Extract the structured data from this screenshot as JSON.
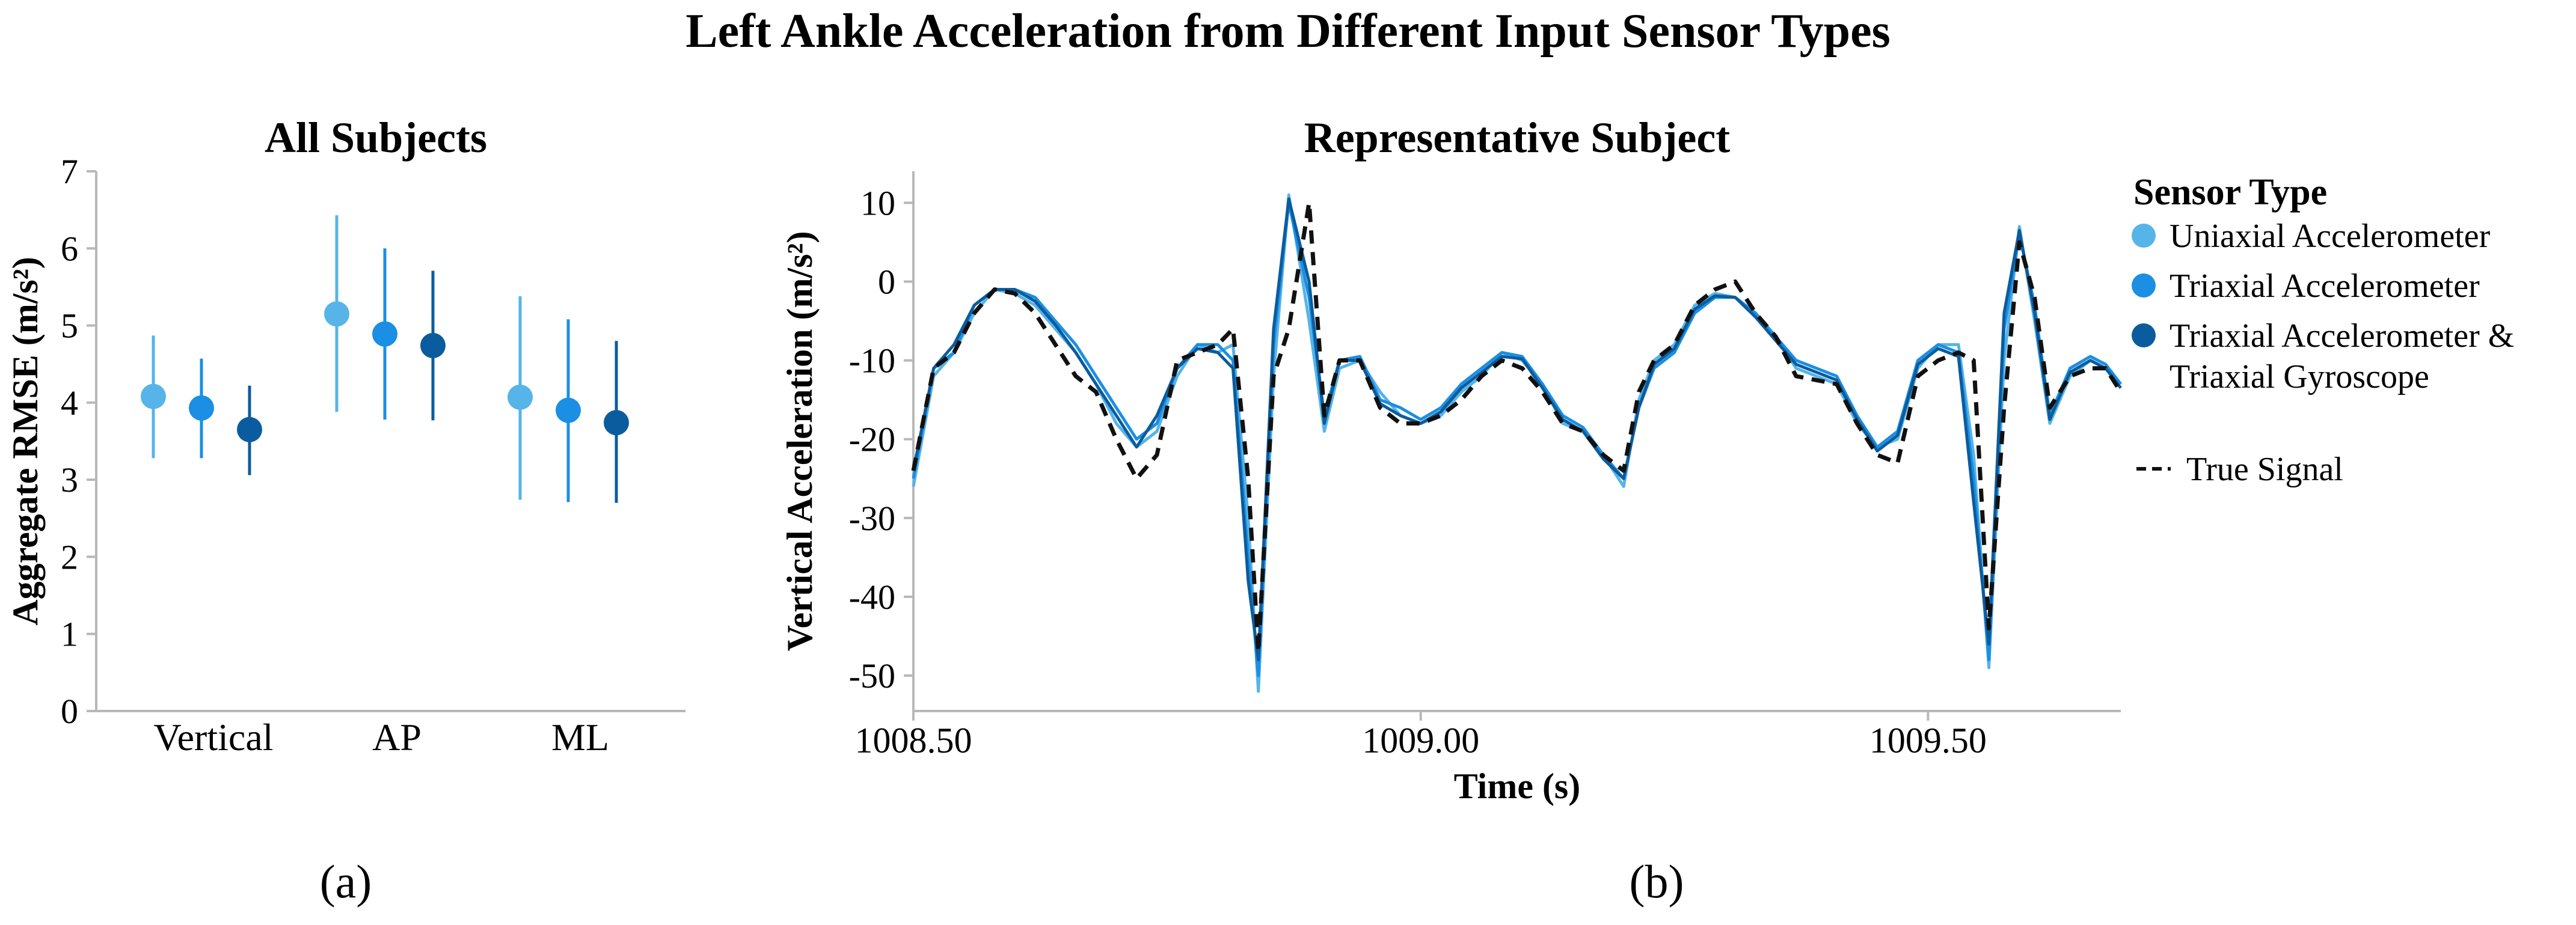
{
  "figure": {
    "title": "Left Ankle Acceleration from Different Input Sensor Types",
    "panel_a_label": "(a)",
    "panel_b_label": "(b)"
  },
  "legend": {
    "title": "Sensor Type",
    "items": [
      {
        "label": "Uniaxial Accelerometer",
        "color": "#56b4e9",
        "marker": "dot"
      },
      {
        "label": "Triaxial Accelerometer",
        "color": "#1a8fe3",
        "marker": "dot"
      },
      {
        "label": "Triaxial Accelerometer &",
        "label2": "Triaxial Gyroscope",
        "color": "#0b5c9e",
        "marker": "dot"
      },
      {
        "label": "True Signal",
        "color": "#111111",
        "marker": "dash"
      }
    ]
  },
  "chart_data": [
    {
      "type": "scatter",
      "subtype": "point-with-error-bars",
      "title": "All Subjects",
      "xlabel": "",
      "ylabel": "Aggregate RMSE (m/s²)",
      "ylim": [
        0,
        7
      ],
      "yticks": [
        0,
        1,
        2,
        3,
        4,
        5,
        6,
        7
      ],
      "categories": [
        "Vertical",
        "AP",
        "ML"
      ],
      "series": [
        {
          "name": "Uniaxial Accelerometer",
          "color": "#56b4e9",
          "values": [
            4.08,
            5.15,
            4.07
          ],
          "lower": [
            3.28,
            3.88,
            2.74
          ],
          "upper": [
            4.87,
            6.43,
            5.38
          ]
        },
        {
          "name": "Triaxial Accelerometer",
          "color": "#1a8fe3",
          "values": [
            3.93,
            4.89,
            3.9
          ],
          "lower": [
            3.28,
            3.78,
            2.71
          ],
          "upper": [
            4.57,
            6.0,
            5.08
          ]
        },
        {
          "name": "Triaxial Accelerometer & Triaxial Gyroscope",
          "color": "#0b5c9e",
          "values": [
            3.65,
            4.74,
            3.74
          ],
          "lower": [
            3.06,
            3.77,
            2.7
          ],
          "upper": [
            4.22,
            5.71,
            4.8
          ]
        }
      ]
    },
    {
      "type": "line",
      "title": "Representative Subject",
      "xlabel": "Time (s)",
      "ylabel": "Vertical Acceleration (m/s²)",
      "xlim": [
        1008.5,
        1009.69
      ],
      "ylim": [
        -54.5,
        14
      ],
      "xticks": [
        1008.5,
        1009.0,
        1009.5
      ],
      "xtick_labels": [
        "1008.50",
        "1009.00",
        "1009.50"
      ],
      "yticks": [
        -50,
        -40,
        -30,
        -20,
        -10,
        0,
        10
      ],
      "x": [
        1008.5,
        1008.52,
        1008.54,
        1008.56,
        1008.58,
        1008.6,
        1008.62,
        1008.64,
        1008.66,
        1008.68,
        1008.7,
        1008.72,
        1008.74,
        1008.76,
        1008.78,
        1008.8,
        1008.815,
        1008.83,
        1008.84,
        1008.855,
        1008.87,
        1008.89,
        1008.905,
        1008.92,
        1008.94,
        1008.96,
        1008.98,
        1009.0,
        1009.02,
        1009.04,
        1009.06,
        1009.08,
        1009.1,
        1009.12,
        1009.14,
        1009.16,
        1009.18,
        1009.2,
        1009.215,
        1009.23,
        1009.25,
        1009.27,
        1009.29,
        1009.31,
        1009.33,
        1009.35,
        1009.37,
        1009.39,
        1009.41,
        1009.43,
        1009.45,
        1009.47,
        1009.49,
        1009.51,
        1009.53,
        1009.545,
        1009.56,
        1009.575,
        1009.59,
        1009.605,
        1009.62,
        1009.64,
        1009.66,
        1009.675,
        1009.69
      ],
      "series": [
        {
          "name": "Uniaxial Accelerometer",
          "color": "#56b4e9",
          "dash": false,
          "values": [
            -26,
            -12,
            -9,
            -4,
            -1,
            -1.5,
            -3,
            -6,
            -9,
            -13,
            -18,
            -21,
            -19,
            -12,
            -8,
            -9,
            -8,
            -30,
            -52,
            -12,
            11,
            -5,
            -19,
            -11,
            -10,
            -14,
            -17,
            -18,
            -17,
            -14,
            -12,
            -9,
            -10,
            -13,
            -18,
            -19,
            -22,
            -26,
            -15,
            -10,
            -8,
            -3,
            -1.5,
            -2,
            -4,
            -7,
            -11,
            -12,
            -13,
            -18,
            -21,
            -20,
            -11,
            -8,
            -8,
            -22,
            -49,
            -10,
            7,
            -5,
            -18,
            -12,
            -10,
            -11,
            -13
          ]
        },
        {
          "name": "Triaxial Accelerometer",
          "color": "#1a8fe3",
          "dash": false,
          "values": [
            -25,
            -11,
            -9,
            -3,
            -1,
            -1,
            -2,
            -5,
            -8,
            -12,
            -16,
            -20,
            -18,
            -11,
            -8,
            -8,
            -10,
            -35,
            -50,
            -8,
            10,
            -2,
            -17,
            -10,
            -9.5,
            -15,
            -16,
            -17.5,
            -16,
            -13,
            -11,
            -9,
            -9.5,
            -13,
            -17,
            -18.5,
            -22,
            -25,
            -16,
            -11,
            -9,
            -4,
            -2,
            -2,
            -4,
            -7,
            -10,
            -11,
            -12,
            -17,
            -21,
            -19,
            -10,
            -8,
            -9,
            -25,
            -48,
            -6,
            6,
            -3,
            -17,
            -11,
            -9.5,
            -10.5,
            -13
          ]
        },
        {
          "name": "Triaxial Accelerometer & Triaxial Gyroscope",
          "color": "#0b5c9e",
          "dash": false,
          "values": [
            -24,
            -11,
            -8,
            -3,
            -1,
            -1,
            -2.5,
            -5.5,
            -9,
            -13,
            -17,
            -21,
            -17,
            -11,
            -8.5,
            -9,
            -11,
            -38,
            -48,
            -6,
            10.5,
            0,
            -18,
            -10,
            -10,
            -15.5,
            -17,
            -18,
            -16.5,
            -13.5,
            -11.5,
            -9.5,
            -9.8,
            -13.5,
            -17.5,
            -19,
            -22.5,
            -25,
            -16,
            -10.5,
            -8.5,
            -3.5,
            -1.8,
            -2,
            -4.5,
            -7.5,
            -10.5,
            -11.5,
            -12.5,
            -17.5,
            -21.5,
            -19.5,
            -10.5,
            -8.5,
            -9.5,
            -28,
            -46,
            -4,
            6.5,
            -4,
            -17.5,
            -11.5,
            -10,
            -11,
            -13.5
          ]
        },
        {
          "name": "True Signal",
          "color": "#111111",
          "dash": true,
          "values": [
            -24,
            -11,
            -9,
            -4,
            -1,
            -1.5,
            -4,
            -8,
            -12,
            -14,
            -20,
            -25,
            -22,
            -10,
            -9,
            -8,
            -6,
            -25,
            -47,
            -12,
            -6,
            10,
            -17,
            -10,
            -10,
            -16,
            -18,
            -18,
            -17,
            -15,
            -12,
            -10,
            -11,
            -14,
            -18,
            -19,
            -22,
            -24,
            -14,
            -10,
            -8,
            -3,
            -1,
            0,
            -4,
            -7,
            -12,
            -12.5,
            -13,
            -18,
            -22,
            -23,
            -12,
            -10,
            -9,
            -10,
            -44,
            -16,
            5,
            -2,
            -16,
            -12,
            -11,
            -11,
            -14
          ]
        }
      ]
    }
  ]
}
